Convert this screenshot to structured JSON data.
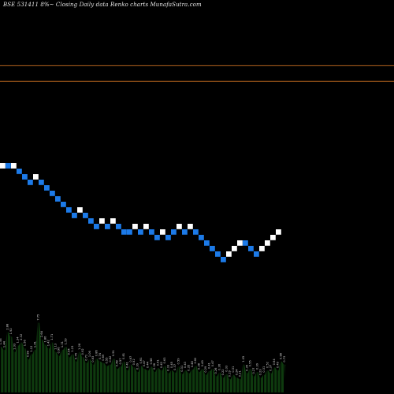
{
  "header": {
    "title": "BSE 531411 8%~   Closing Daily data  Renko  charts MunafaSutra.com"
  },
  "colors": {
    "background": "#000000",
    "up_brick": "#ffffff",
    "down_brick": "#1c7ae8",
    "reference_line": "#b4641e",
    "volume_fill": "#0e3a0e",
    "volume_label": "#d2d2d2"
  },
  "chart_data": {
    "type": "renko",
    "title": "BSE 531411 8%~   Closing Daily data  Renko  charts MunafaSutra.com",
    "bricks": [
      {
        "dir": "up",
        "level": 0
      },
      {
        "dir": "down",
        "level": 0
      },
      {
        "dir": "up",
        "level": 0
      },
      {
        "dir": "down",
        "level": -1
      },
      {
        "dir": "down",
        "level": -2
      },
      {
        "dir": "down",
        "level": -3
      },
      {
        "dir": "up",
        "level": -2
      },
      {
        "dir": "down",
        "level": -3
      },
      {
        "dir": "down",
        "level": -4
      },
      {
        "dir": "down",
        "level": -5
      },
      {
        "dir": "down",
        "level": -6
      },
      {
        "dir": "down",
        "level": -7
      },
      {
        "dir": "down",
        "level": -8
      },
      {
        "dir": "down",
        "level": -9
      },
      {
        "dir": "up",
        "level": -8
      },
      {
        "dir": "down",
        "level": -9
      },
      {
        "dir": "down",
        "level": -10
      },
      {
        "dir": "down",
        "level": -11
      },
      {
        "dir": "up",
        "level": -10
      },
      {
        "dir": "down",
        "level": -11
      },
      {
        "dir": "up",
        "level": -10
      },
      {
        "dir": "down",
        "level": -11
      },
      {
        "dir": "down",
        "level": -12
      },
      {
        "dir": "down",
        "level": -12
      },
      {
        "dir": "up",
        "level": -11
      },
      {
        "dir": "down",
        "level": -12
      },
      {
        "dir": "up",
        "level": -11
      },
      {
        "dir": "down",
        "level": -12
      },
      {
        "dir": "down",
        "level": -13
      },
      {
        "dir": "up",
        "level": -12
      },
      {
        "dir": "down",
        "level": -13
      },
      {
        "dir": "down",
        "level": -12
      },
      {
        "dir": "up",
        "level": -11
      },
      {
        "dir": "down",
        "level": -12
      },
      {
        "dir": "up",
        "level": -11
      },
      {
        "dir": "down",
        "level": -12
      },
      {
        "dir": "down",
        "level": -13
      },
      {
        "dir": "down",
        "level": -14
      },
      {
        "dir": "down",
        "level": -15
      },
      {
        "dir": "down",
        "level": -16
      },
      {
        "dir": "down",
        "level": -17
      },
      {
        "dir": "up",
        "level": -16
      },
      {
        "dir": "up",
        "level": -15
      },
      {
        "dir": "up",
        "level": -14
      },
      {
        "dir": "down",
        "level": -14
      },
      {
        "dir": "down",
        "level": -15
      },
      {
        "dir": "down",
        "level": -16
      },
      {
        "dir": "up",
        "level": -15
      },
      {
        "dir": "up",
        "level": -14
      },
      {
        "dir": "up",
        "level": -13
      },
      {
        "dir": "up",
        "level": -12
      }
    ],
    "reference_lines": [
      0.87,
      0.76
    ],
    "volume": [
      0.62,
      0.58,
      0.82,
      0.76,
      0.55,
      0.64,
      0.68,
      0.6,
      0.45,
      0.52,
      0.58,
      0.95,
      0.72,
      0.65,
      0.6,
      0.68,
      0.55,
      0.5,
      0.58,
      0.62,
      0.48,
      0.52,
      0.42,
      0.55,
      0.48,
      0.4,
      0.45,
      0.38,
      0.46,
      0.42,
      0.4,
      0.36,
      0.38,
      0.46,
      0.32,
      0.35,
      0.42,
      0.3,
      0.38,
      0.34,
      0.28,
      0.36,
      0.32,
      0.3,
      0.35,
      0.28,
      0.33,
      0.3,
      0.36,
      0.26,
      0.3,
      0.27,
      0.35,
      0.25,
      0.3,
      0.26,
      0.31,
      0.36,
      0.28,
      0.32,
      0.24,
      0.29,
      0.32,
      0.22,
      0.27,
      0.2,
      0.25,
      0.18,
      0.24,
      0.2,
      0.18,
      0.38,
      0.26,
      0.32,
      0.22,
      0.28,
      0.2,
      0.24,
      0.3,
      0.26,
      0.34,
      0.3,
      0.42,
      0.38
    ],
    "volume_labels": [
      "1.55",
      "1.44",
      "2.88",
      "1.92",
      "1.33",
      "1.34",
      "2.32",
      "1.56",
      "0.98",
      "1.12",
      "1.41",
      "7.75",
      "2.64",
      "1.86",
      "1.42",
      "1.71",
      "1.13",
      "0.96",
      "1.31",
      "1.59",
      "0.94",
      "1.23",
      "0.76",
      "1.28",
      "0.92",
      "0.71",
      "1.06",
      "0.63",
      "0.86",
      "0.74",
      "0.69",
      "0.55",
      "0.62",
      "0.91",
      "0.48",
      "0.57",
      "0.81",
      "0.41",
      "0.67",
      "0.52",
      "0.39",
      "0.61",
      "0.47",
      "0.44",
      "0.58",
      "0.36",
      "0.51",
      "0.42",
      "0.63",
      "0.33",
      "0.45",
      "0.37",
      "0.59",
      "0.31",
      "0.43",
      "0.35",
      "0.48",
      "0.62",
      "0.38",
      "0.49",
      "0.29",
      "0.41",
      "0.47",
      "0.26",
      "0.36",
      "0.22",
      "0.33",
      "0.19",
      "0.31",
      "0.24",
      "0.21",
      "1.05",
      "0.35",
      "0.55",
      "0.27",
      "0.39",
      "0.23",
      "0.31",
      "0.52",
      "0.37",
      "0.64",
      "0.49",
      "0.88",
      "0.73"
    ]
  }
}
